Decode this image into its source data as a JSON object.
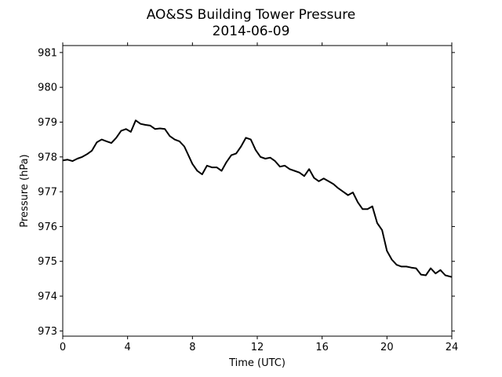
{
  "chart_data": {
    "type": "line",
    "title": "AO&SS Building Tower Pressure",
    "subtitle": "2014-06-09",
    "xlabel": "Time (UTC)",
    "ylabel": "Pressure (hPa)",
    "xlim": [
      0,
      24
    ],
    "ylim": [
      972.85,
      981.2
    ],
    "xticks": [
      0,
      4,
      8,
      12,
      16,
      20,
      24
    ],
    "yticks": [
      973,
      974,
      975,
      976,
      977,
      978,
      979,
      980,
      981
    ],
    "grid": false,
    "line_color": "#000000",
    "series": [
      {
        "x": [
          0,
          0.3,
          0.6,
          0.9,
          1.2,
          1.5,
          1.8,
          2.1,
          2.4,
          2.7,
          3.0,
          3.3,
          3.6,
          3.9,
          4.2,
          4.5,
          4.8,
          5.1,
          5.4,
          5.7,
          6.0,
          6.3,
          6.6,
          6.9,
          7.2,
          7.5,
          7.8,
          8.0,
          8.3,
          8.6,
          8.9,
          9.2,
          9.5,
          9.8,
          10.1,
          10.4,
          10.7,
          11.0,
          11.3,
          11.6,
          11.9,
          12.2,
          12.5,
          12.8,
          13.1,
          13.4,
          13.7,
          14.0,
          14.3,
          14.6,
          14.9,
          15.2,
          15.5,
          15.8,
          16.1,
          16.4,
          16.7,
          17.0,
          17.3,
          17.6,
          17.9,
          18.2,
          18.5,
          18.8,
          19.1,
          19.4,
          19.7,
          20.0,
          20.3,
          20.6,
          20.9,
          21.2,
          21.5,
          21.8,
          22.1,
          22.4,
          22.7,
          23.0,
          23.3,
          23.6,
          24.0
        ],
        "y": [
          977.9,
          977.92,
          977.88,
          977.95,
          978.0,
          978.08,
          978.18,
          978.42,
          978.5,
          978.45,
          978.4,
          978.55,
          978.75,
          978.8,
          978.72,
          979.05,
          978.95,
          978.92,
          978.9,
          978.8,
          978.82,
          978.8,
          978.6,
          978.5,
          978.45,
          978.3,
          978.0,
          977.8,
          977.6,
          977.5,
          977.75,
          977.7,
          977.7,
          977.6,
          977.85,
          978.05,
          978.1,
          978.3,
          978.55,
          978.5,
          978.2,
          978.0,
          977.95,
          977.98,
          977.88,
          977.72,
          977.75,
          977.65,
          977.6,
          977.55,
          977.45,
          977.65,
          977.4,
          977.3,
          977.38,
          977.3,
          977.22,
          977.1,
          977.0,
          976.9,
          976.98,
          976.7,
          976.5,
          976.5,
          976.58,
          976.1,
          975.9,
          975.3,
          975.05,
          974.9,
          974.85,
          974.85,
          974.82,
          974.8,
          974.62,
          974.6,
          974.8,
          974.65,
          974.75,
          974.6,
          974.55
        ]
      }
    ]
  }
}
